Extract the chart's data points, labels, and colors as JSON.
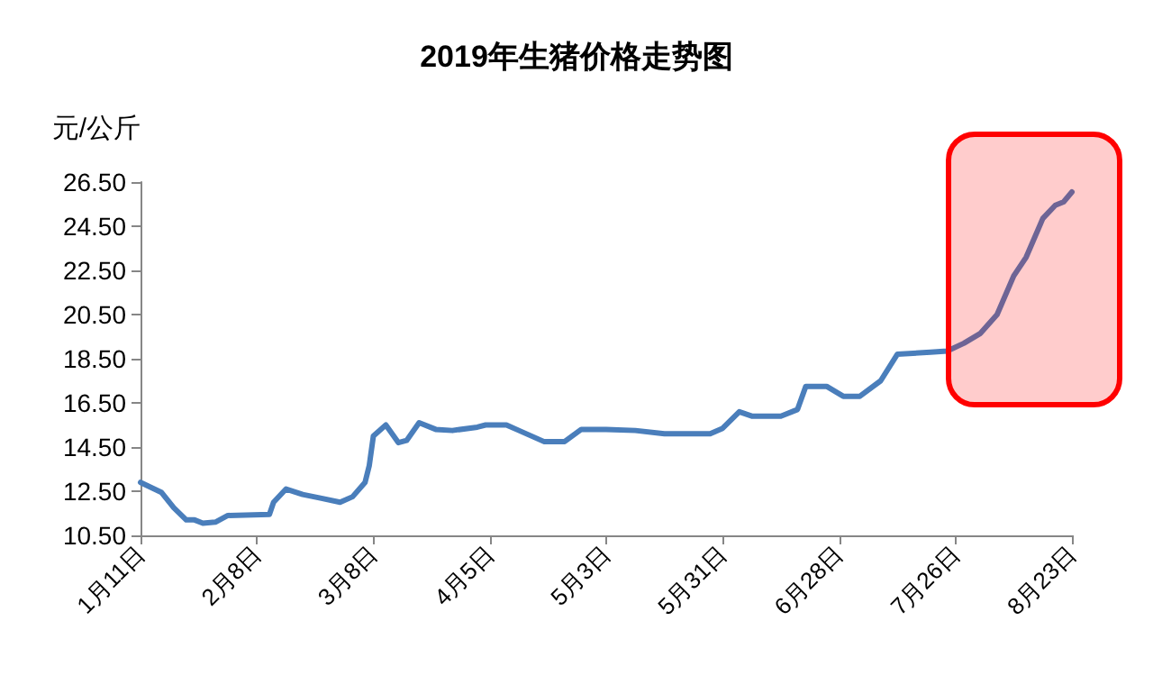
{
  "chart_data": {
    "type": "line",
    "title": "2019年生猪价格走势图",
    "ylabel": "元/公斤",
    "x": [
      "2019-01-11",
      "2019-01-16",
      "2019-01-19",
      "2019-01-22",
      "2019-01-24",
      "2019-01-26",
      "2019-01-29",
      "2019-02-01",
      "2019-02-11",
      "2019-02-12",
      "2019-02-15",
      "2019-02-19",
      "2019-02-23",
      "2019-02-28",
      "2019-03-03",
      "2019-03-06",
      "2019-03-07",
      "2019-03-08",
      "2019-03-11",
      "2019-03-14",
      "2019-03-16",
      "2019-03-19",
      "2019-03-23",
      "2019-03-27",
      "2019-04-02",
      "2019-04-04",
      "2019-04-09",
      "2019-04-12",
      "2019-04-18",
      "2019-04-23",
      "2019-04-27",
      "2019-05-03",
      "2019-05-10",
      "2019-05-17",
      "2019-05-28",
      "2019-05-31",
      "2019-06-04",
      "2019-06-07",
      "2019-06-14",
      "2019-06-18",
      "2019-06-20",
      "2019-06-25",
      "2019-06-29",
      "2019-07-03",
      "2019-07-08",
      "2019-07-12",
      "2019-07-20",
      "2019-07-24",
      "2019-07-28",
      "2019-08-01",
      "2019-08-05",
      "2019-08-09",
      "2019-08-12",
      "2019-08-16",
      "2019-08-19",
      "2019-08-21",
      "2019-08-23"
    ],
    "series": [
      {
        "color": "#4a7ebb",
        "values": [
          12.9,
          12.45,
          11.75,
          11.2,
          11.2,
          11.05,
          11.1,
          11.4,
          11.45,
          12.0,
          12.6,
          12.35,
          12.2,
          12.0,
          12.25,
          12.9,
          13.65,
          15.0,
          15.5,
          14.7,
          14.8,
          15.6,
          15.3,
          15.25,
          15.4,
          15.5,
          15.5,
          15.25,
          14.75,
          14.75,
          15.3,
          15.3,
          15.25,
          15.1,
          15.1,
          15.35,
          16.1,
          15.9,
          15.9,
          16.2,
          17.25,
          17.25,
          16.8,
          16.8,
          17.5,
          18.7,
          18.8,
          18.85,
          19.2,
          19.65,
          20.5,
          22.25,
          23.1,
          24.85,
          25.45,
          25.6,
          26.05
        ]
      }
    ],
    "xlim": [
      "2019-01-11",
      "2019-08-23"
    ],
    "xticks": [
      {
        "value": "2019-01-11",
        "label": "1月11日"
      },
      {
        "value": "2019-02-08",
        "label": "2月8日"
      },
      {
        "value": "2019-03-08",
        "label": "3月8日"
      },
      {
        "value": "2019-04-05",
        "label": "4月5日"
      },
      {
        "value": "2019-05-03",
        "label": "5月3日"
      },
      {
        "value": "2019-05-31",
        "label": "5月31日"
      },
      {
        "value": "2019-06-28",
        "label": "6月28日"
      },
      {
        "value": "2019-07-26",
        "label": "7月26日"
      },
      {
        "value": "2019-08-23",
        "label": "8月23日"
      }
    ],
    "ylim": [
      10.5,
      26.5
    ],
    "yticks": [
      {
        "value": 10.5,
        "label": "10.50"
      },
      {
        "value": 12.5,
        "label": "12.50"
      },
      {
        "value": 14.5,
        "label": "14.50"
      },
      {
        "value": 16.5,
        "label": "16.50"
      },
      {
        "value": 18.5,
        "label": "18.50"
      },
      {
        "value": 20.5,
        "label": "20.50"
      },
      {
        "value": 22.5,
        "label": "22.50"
      },
      {
        "value": 24.5,
        "label": "24.50"
      },
      {
        "value": 26.5,
        "label": "26.50"
      }
    ],
    "grid": false,
    "marker": "none",
    "line_style": "solid"
  }
}
